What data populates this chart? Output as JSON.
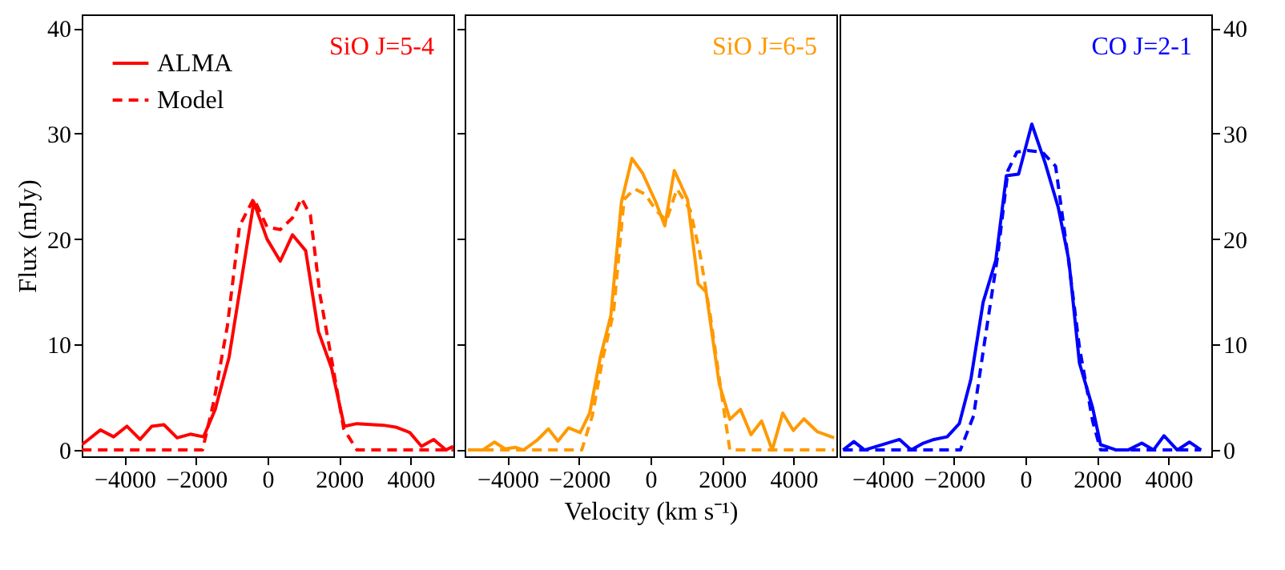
{
  "chart_data": [
    {
      "type": "line",
      "ylabel": "Flux (mJy)",
      "xlim": [
        -5200,
        5200
      ],
      "xticks": [
        -4000,
        -2000,
        0,
        2000,
        4000
      ],
      "ylim": [
        -0.6,
        41.3
      ],
      "yticks": [
        0,
        10,
        20,
        30,
        40
      ],
      "grid": false,
      "legend": "top left",
      "annotations": [
        "SiO J=5-4"
      ],
      "series": [
        {
          "name": "ALMA",
          "color": "#ff0000",
          "line_style": "solid",
          "x": [
            -5195,
            -4677,
            -4307,
            -3937,
            -3567,
            -3241,
            -2900,
            -2531,
            -2161,
            -1791,
            -1465,
            -1080,
            -725,
            -385,
            -15,
            355,
            696,
            1066,
            1421,
            1791,
            2146,
            2501,
            3241,
            3611,
            3981,
            4307,
            4647,
            4988,
            5195
          ],
          "values": [
            0.5,
            1.9,
            1.25,
            2.25,
            1,
            2.25,
            2.4,
            1.15,
            1.5,
            1.25,
            3.85,
            8.75,
            16.25,
            23.5,
            20,
            17.9,
            20.4,
            18.9,
            11.25,
            7.75,
            2.25,
            2.5,
            2.35,
            2.15,
            1.65,
            0.35,
            1,
            0,
            0.35
          ]
        },
        {
          "name": "Model",
          "color": "#ff0000",
          "line_style": "dashed",
          "x": [
            -5195,
            -1820,
            -1495,
            -1125,
            -784,
            -385,
            -15,
            355,
            696,
            948,
            1199,
            1465,
            1835,
            2131,
            2501,
            5195
          ],
          "values": [
            0,
            0,
            4.75,
            11.75,
            21.25,
            23.85,
            21.15,
            20.9,
            22,
            23.85,
            22.25,
            14.75,
            7.75,
            2,
            0,
            0
          ]
        }
      ]
    },
    {
      "type": "line",
      "xlabel": "Velocity (km s⁻¹)",
      "xlim": [
        -5200,
        5200
      ],
      "xticks": [
        -4000,
        -2000,
        0,
        2000,
        4000
      ],
      "ylim": [
        -0.6,
        41.3
      ],
      "yticks": [
        0,
        10,
        20,
        30,
        40
      ],
      "tick_labels": "x",
      "grid": false,
      "annotations": [
        "SiO J=6-5"
      ],
      "series": [
        {
          "color": "#ff9900",
          "line_style": "solid",
          "x": [
            -5106,
            -4692,
            -4366,
            -4070,
            -3774,
            -3552,
            -3182,
            -2856,
            -2590,
            -2294,
            -1968,
            -1702,
            -1406,
            -1110,
            -814,
            -518,
            -222,
            148,
            400,
            666,
            1036,
            1332,
            1554,
            1924,
            2220,
            2516,
            2812,
            3108,
            3404,
            3700,
            3996,
            4292,
            4662,
            5136
          ],
          "values": [
            0,
            0,
            0.75,
            0.1,
            0.25,
            0,
            0.9,
            2,
            0.85,
            2.1,
            1.65,
            3.5,
            8.75,
            12.75,
            23.5,
            27.65,
            26.25,
            23.5,
            21.25,
            26.5,
            23.75,
            15.75,
            15,
            6.25,
            2.9,
            3.85,
            1.45,
            2.75,
            0,
            3.5,
            1.85,
            2.95,
            1.75,
            1.15
          ]
        },
        {
          "color": "#ff9900",
          "line_style": "dashed",
          "x": [
            -5106,
            -1924,
            -1628,
            -1332,
            -1036,
            -740,
            -444,
            -148,
            148,
            444,
            740,
            1110,
            1376,
            1672,
            1968,
            2220,
            5136
          ],
          "values": [
            0,
            0,
            3.25,
            8.75,
            13,
            23.75,
            24.75,
            24.25,
            22.75,
            21.75,
            24.75,
            22.75,
            18.75,
            12.75,
            5.75,
            0,
            0
          ]
        }
      ]
    },
    {
      "type": "line",
      "xlim": [
        -5200,
        5200
      ],
      "xticks": [
        -4000,
        -2000,
        0,
        2000,
        4000
      ],
      "y2lim": [
        -0.6,
        41.3
      ],
      "y2ticks": [
        0,
        10,
        20,
        30,
        40
      ],
      "grid": false,
      "annotations": [
        "CO J=2-1"
      ],
      "series": [
        {
          "color": "#0000ff",
          "line_style": "solid",
          "axis": "y2",
          "x": [
            -5100,
            -4800,
            -4500,
            -3522,
            -3197,
            -2856,
            -2560,
            -2190,
            -1850,
            -1524,
            -1184,
            -829,
            -533,
            -192,
            178,
            548,
            918,
            1214,
            1510,
            1880,
            2102,
            2545,
            2871,
            3256,
            3582,
            3878,
            4248,
            4588,
            4914
          ],
          "values": [
            0,
            0.8,
            0,
            1,
            0,
            0.65,
            1,
            1.25,
            2.5,
            6.75,
            14,
            18,
            26,
            26.15,
            30.9,
            27.25,
            23,
            18,
            8.25,
            4,
            0.5,
            0,
            0,
            0.65,
            0,
            1.35,
            0,
            0.75,
            0
          ]
        },
        {
          "color": "#0000ff",
          "line_style": "dashed",
          "axis": "y2",
          "x": [
            -5100,
            -1820,
            -1450,
            -1154,
            -784,
            -488,
            -237,
            59,
            474,
            844,
            1214,
            1510,
            1880,
            2102,
            4914
          ],
          "values": [
            0,
            0,
            3.25,
            10,
            18.25,
            26.5,
            28.25,
            28.4,
            28.25,
            26.9,
            17.75,
            9.75,
            2.75,
            0,
            0
          ]
        }
      ]
    }
  ]
}
